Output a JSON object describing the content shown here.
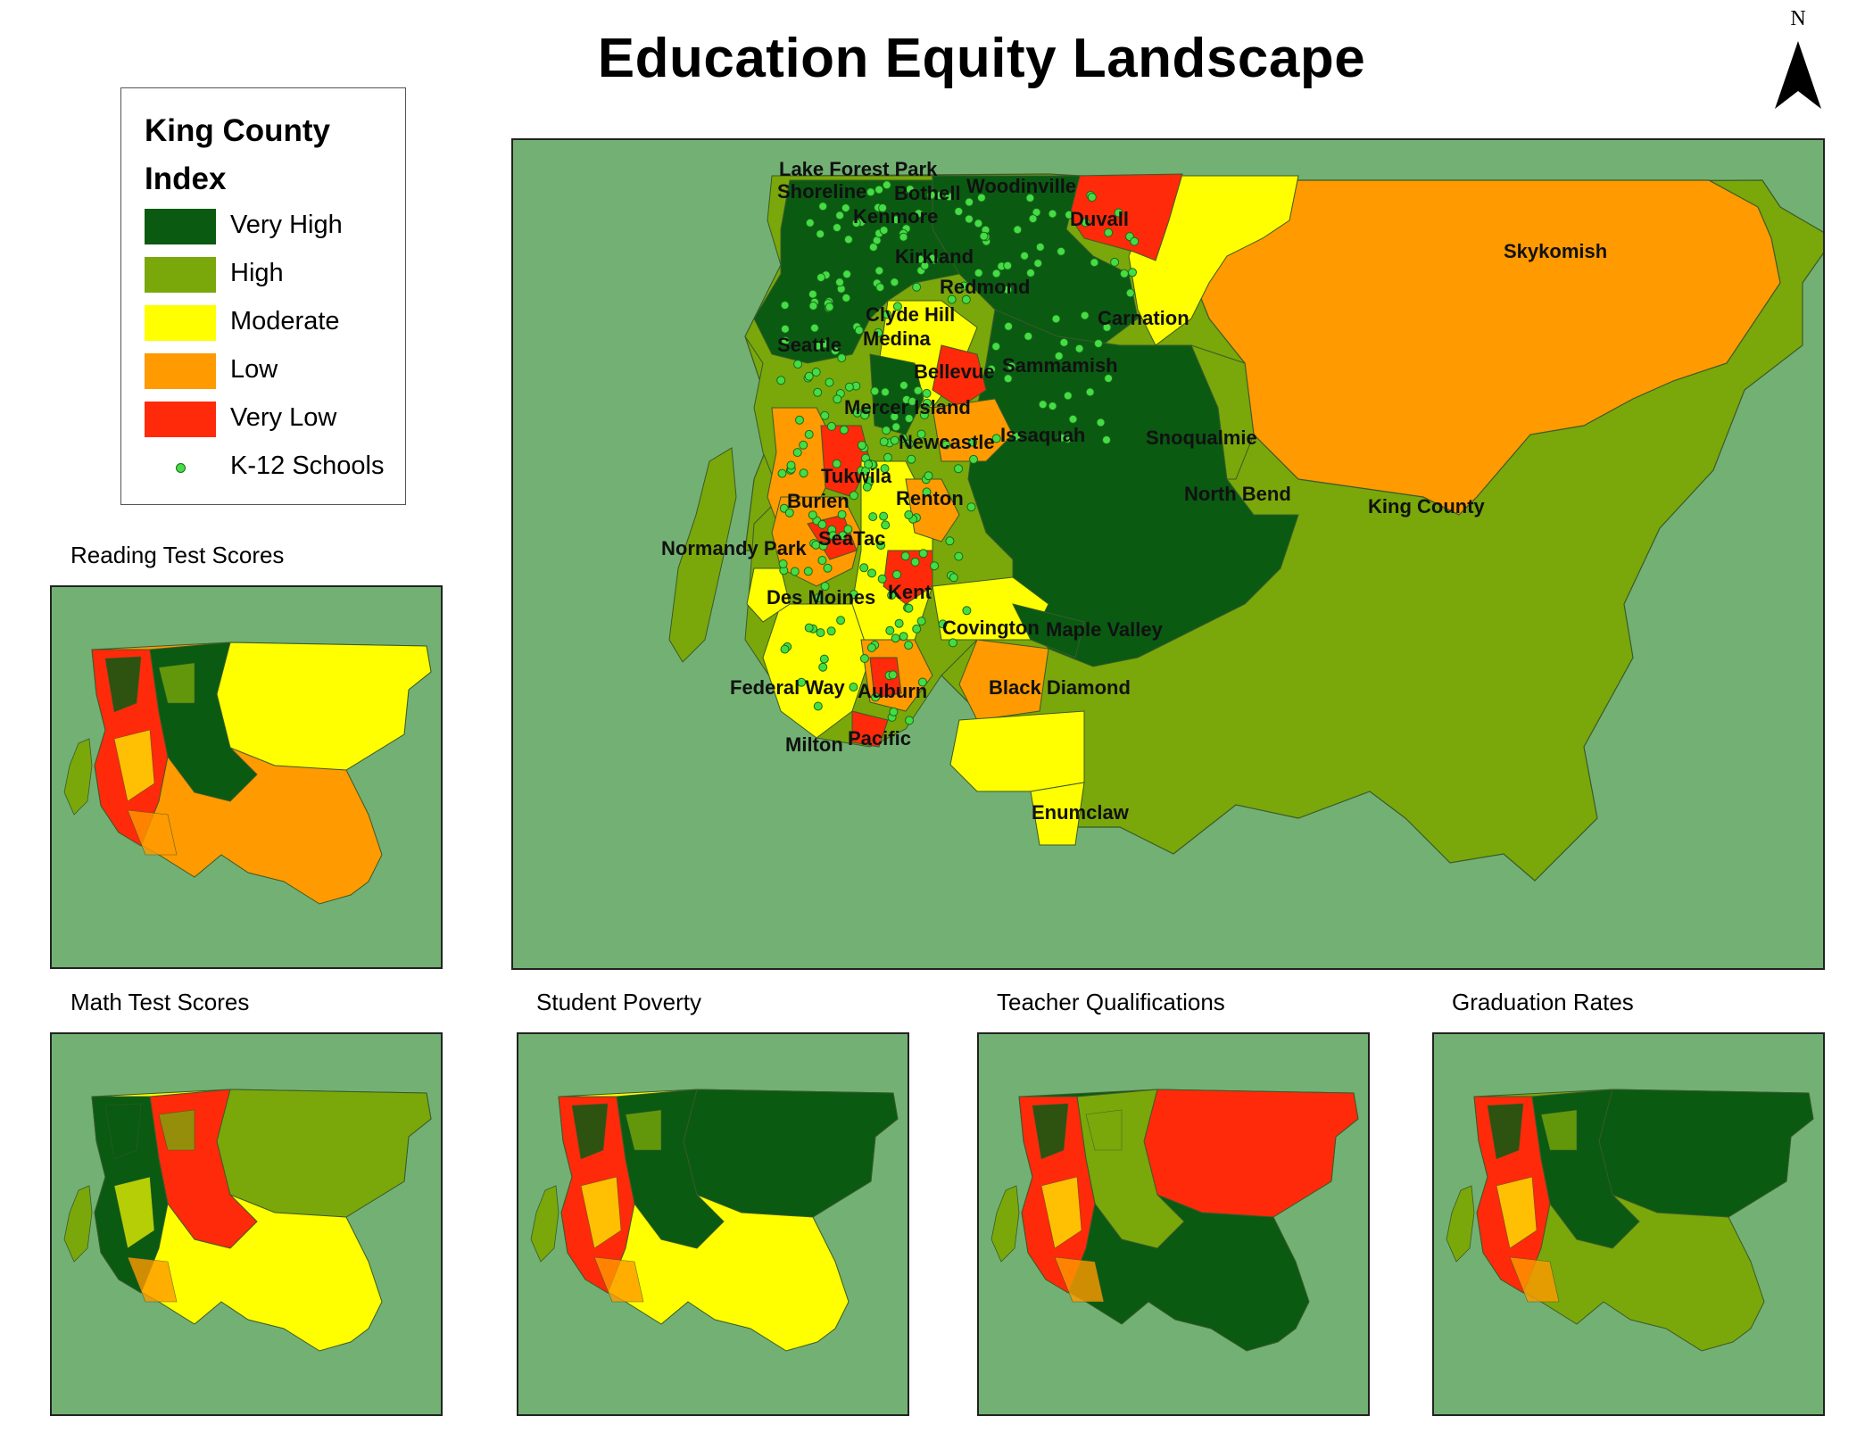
{
  "title": "Education Equity Landscape",
  "north_arrow": {
    "label": "N"
  },
  "legend": {
    "title_line1": "King County",
    "title_line2": "Index",
    "items": [
      {
        "label": "Very High",
        "color": "#0a5a12"
      },
      {
        "label": "High",
        "color": "#7aa70a"
      },
      {
        "label": "Moderate",
        "color": "#ffff00"
      },
      {
        "label": "Low",
        "color": "#ff9a00"
      },
      {
        "label": "Very Low",
        "color": "#ff2a0a"
      }
    ],
    "schools_label": "K-12 Schools",
    "schools_color": "#44dd44"
  },
  "background_color": "#72b173",
  "main_map": {
    "places": [
      "Lake Forest Park",
      "Shoreline",
      "Bothell",
      "Woodinville",
      "Kenmore",
      "Duvall",
      "Skykomish",
      "Kirkland",
      "Redmond",
      "Carnation",
      "Clyde Hill",
      "Medina",
      "Seattle",
      "Bellevue",
      "Sammamish",
      "Mercer Island",
      "Snoqualmie",
      "Newcastle",
      "Issaquah",
      "Tukwila",
      "North Bend",
      "Burien",
      "Renton",
      "King County",
      "Normandy Park",
      "SeaTac",
      "Des Moines",
      "Kent",
      "Covington",
      "Maple Valley",
      "Federal Way",
      "Auburn",
      "Black Diamond",
      "Milton",
      "Pacific",
      "Enumclaw"
    ]
  },
  "panels": [
    {
      "title": "Reading Test Scores",
      "east": "#ffff00",
      "south": "#ff9a00",
      "center": "#0a5a12",
      "west": "#ff2a0a"
    },
    {
      "title": "Math Test Scores",
      "east": "#7aa70a",
      "south": "#ffff00",
      "center": "#ff2a0a",
      "west": "#0a5a12"
    },
    {
      "title": "Student Poverty",
      "east": "#0a5a12",
      "south": "#ffff00",
      "center": "#0a5a12",
      "west": "#ff2a0a"
    },
    {
      "title": "Teacher Qualifications",
      "east": "#ff2a0a",
      "south": "#0a5a12",
      "center": "#7aa70a",
      "west": "#ff2a0a"
    },
    {
      "title": "Graduation Rates",
      "east": "#0a5a12",
      "south": "#7aa70a",
      "center": "#0a5a12",
      "west": "#ff2a0a"
    }
  ]
}
